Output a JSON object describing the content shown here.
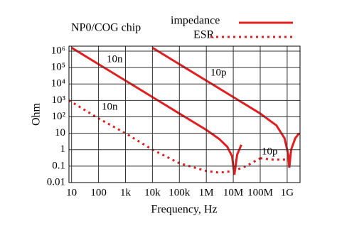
{
  "chart_data": {
    "type": "line",
    "title": "NP0/COG chip",
    "x_label": "Frequency, Hz",
    "y_label": "Ohm",
    "xscale": "log",
    "yscale": "log",
    "grid": true,
    "legend": "top-right",
    "color": "#e02020",
    "xlim": [
      8,
      3000000000
    ],
    "ylim": [
      0.01,
      2000000
    ],
    "xticks": [
      10,
      100,
      {
        "value": 1000,
        "label": "1k"
      },
      {
        "value": 10000,
        "label": "10k"
      },
      {
        "value": 100000,
        "label": "100k"
      },
      {
        "value": 1000000,
        "label": "1M"
      },
      {
        "value": 10000000,
        "label": "10M"
      },
      {
        "value": 100000000,
        "label": "100M"
      },
      {
        "value": 1000000000,
        "label": "1G"
      }
    ],
    "yticks": [
      0.01,
      0.1,
      1,
      10,
      {
        "value": 100,
        "label": "10²"
      },
      {
        "value": 1000,
        "label": "10³"
      },
      {
        "value": 10000,
        "label": "10⁴"
      },
      {
        "value": 100000,
        "label": "10⁵"
      },
      {
        "value": 1000000,
        "label": "10⁶"
      }
    ],
    "series": [
      {
        "name": "impedance",
        "label": "10n",
        "style": "solid",
        "x": [
          10,
          100,
          1000,
          10000,
          100000,
          1000000,
          3000000,
          6000000,
          9000000,
          11000000,
          14000000,
          20000000
        ],
        "values": [
          1600000,
          160000,
          16000,
          1600,
          160,
          16,
          4.5,
          1.5,
          0.4,
          0.03,
          0.5,
          2
        ]
      },
      {
        "name": "impedance",
        "label": "10p",
        "style": "solid",
        "x": [
          10000,
          100000,
          1000000,
          10000000,
          100000000,
          400000000,
          800000000,
          1100000000,
          1200000000,
          1400000000,
          2000000000,
          2800000000
        ],
        "values": [
          1600000,
          160000,
          16000,
          1600,
          160,
          30,
          5,
          0.5,
          0.08,
          1,
          5,
          10
        ]
      },
      {
        "name": "ESR",
        "label": "10n",
        "style": "dotted",
        "x": [
          8,
          10,
          100,
          1000,
          10000,
          100000,
          1000000,
          3000000,
          10000000,
          30000000,
          100000000
        ],
        "values": [
          1000,
          800,
          80,
          10,
          1,
          0.15,
          0.05,
          0.04,
          0.05,
          0.1,
          0.3
        ]
      },
      {
        "name": "ESR",
        "label": "10p",
        "style": "dotted",
        "x": [
          100000000,
          300000000,
          1000000000
        ],
        "values": [
          0.3,
          0.25,
          0.25
        ]
      }
    ]
  }
}
